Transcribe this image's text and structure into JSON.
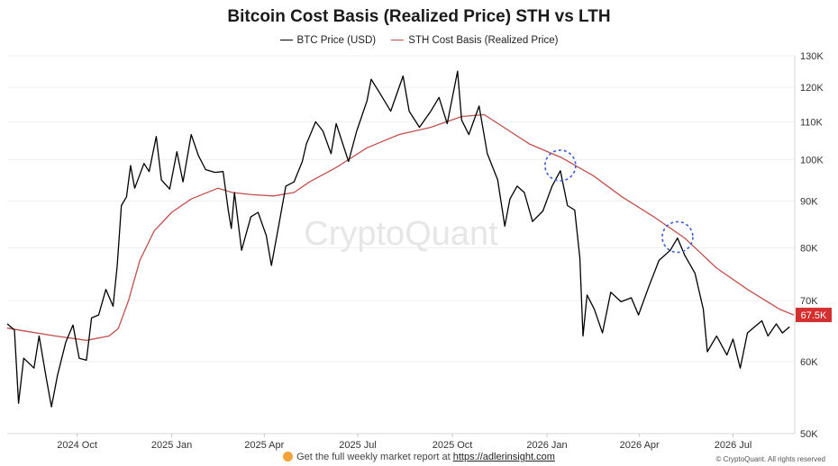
{
  "watermark": "CryptoQuant",
  "footer": {
    "text": "Get the full weekly market report at",
    "link": "https://adlerinsight.com"
  },
  "copyright": "© CryptoQuant. All rights reserved",
  "chart_data": {
    "type": "line",
    "title": "Bitcoin Cost Basis (Realized Price) STH vs LTH",
    "y_scale": "log",
    "ylim": [
      50000,
      130000
    ],
    "y_ticks": [
      {
        "value": 50000,
        "label": "50K"
      },
      {
        "value": 60000,
        "label": "60K"
      },
      {
        "value": 70000,
        "label": "70K"
      },
      {
        "value": 80000,
        "label": "80K"
      },
      {
        "value": 90000,
        "label": "90K"
      },
      {
        "value": 100000,
        "label": "100K"
      },
      {
        "value": 110000,
        "label": "110K"
      },
      {
        "value": 120000,
        "label": "120K"
      },
      {
        "value": 130000,
        "label": "130K"
      }
    ],
    "xlim": [
      "2024-07-25",
      "2026-08-30"
    ],
    "x_ticks": [
      {
        "date": "2024-10-01",
        "label": "2024 Oct"
      },
      {
        "date": "2025-01-01",
        "label": "2025 Jan"
      },
      {
        "date": "2025-04-01",
        "label": "2025 Apr"
      },
      {
        "date": "2025-07-01",
        "label": "2025 Jul"
      },
      {
        "date": "2025-10-01",
        "label": "2025 Oct"
      },
      {
        "date": "2026-01-01",
        "label": "2026 Jan"
      },
      {
        "date": "2026-04-01",
        "label": "2026 Apr"
      },
      {
        "date": "2026-07-01",
        "label": "2026 Jul"
      }
    ],
    "grid": "horizontal",
    "legend_position": "top-center",
    "last_value_label": "67.5K",
    "series": [
      {
        "name": "BTC Price (USD)",
        "color": "#000000",
        "points": [
          [
            "2024-07-25",
            66000
          ],
          [
            "2024-08-01",
            65000
          ],
          [
            "2024-08-05",
            54000
          ],
          [
            "2024-08-10",
            60500
          ],
          [
            "2024-08-20",
            59000
          ],
          [
            "2024-08-25",
            64000
          ],
          [
            "2024-09-01",
            57500
          ],
          [
            "2024-09-06",
            53500
          ],
          [
            "2024-09-12",
            58000
          ],
          [
            "2024-09-20",
            63000
          ],
          [
            "2024-09-27",
            65800
          ],
          [
            "2024-10-03",
            60500
          ],
          [
            "2024-10-10",
            60200
          ],
          [
            "2024-10-15",
            67000
          ],
          [
            "2024-10-22",
            67500
          ],
          [
            "2024-10-29",
            72000
          ],
          [
            "2024-11-05",
            69000
          ],
          [
            "2024-11-09",
            76500
          ],
          [
            "2024-11-13",
            89000
          ],
          [
            "2024-11-18",
            91000
          ],
          [
            "2024-11-22",
            98500
          ],
          [
            "2024-11-26",
            93000
          ],
          [
            "2024-12-05",
            99000
          ],
          [
            "2024-12-10",
            97000
          ],
          [
            "2024-12-17",
            106000
          ],
          [
            "2024-12-22",
            95000
          ],
          [
            "2024-12-30",
            92800
          ],
          [
            "2025-01-06",
            102000
          ],
          [
            "2025-01-12",
            94500
          ],
          [
            "2025-01-20",
            106500
          ],
          [
            "2025-01-27",
            101000
          ],
          [
            "2025-02-03",
            97500
          ],
          [
            "2025-02-12",
            96800
          ],
          [
            "2025-02-20",
            97000
          ],
          [
            "2025-02-25",
            88000
          ],
          [
            "2025-02-28",
            84000
          ],
          [
            "2025-03-03",
            92000
          ],
          [
            "2025-03-10",
            79500
          ],
          [
            "2025-03-19",
            86500
          ],
          [
            "2025-03-26",
            87500
          ],
          [
            "2025-04-03",
            82500
          ],
          [
            "2025-04-08",
            76500
          ],
          [
            "2025-04-15",
            84500
          ],
          [
            "2025-04-22",
            93500
          ],
          [
            "2025-04-30",
            94500
          ],
          [
            "2025-05-08",
            99500
          ],
          [
            "2025-05-12",
            104000
          ],
          [
            "2025-05-21",
            110000
          ],
          [
            "2025-05-28",
            107500
          ],
          [
            "2025-06-05",
            101500
          ],
          [
            "2025-06-10",
            109500
          ],
          [
            "2025-06-22",
            99500
          ],
          [
            "2025-06-30",
            107500
          ],
          [
            "2025-07-10",
            116000
          ],
          [
            "2025-07-14",
            122500
          ],
          [
            "2025-07-22",
            118500
          ],
          [
            "2025-08-02",
            113000
          ],
          [
            "2025-08-14",
            123500
          ],
          [
            "2025-08-20",
            113000
          ],
          [
            "2025-08-30",
            108500
          ],
          [
            "2025-09-10",
            113000
          ],
          [
            "2025-09-18",
            117000
          ],
          [
            "2025-09-26",
            109500
          ],
          [
            "2025-10-06",
            125000
          ],
          [
            "2025-10-10",
            110500
          ],
          [
            "2025-10-17",
            106500
          ],
          [
            "2025-10-27",
            114500
          ],
          [
            "2025-11-04",
            101500
          ],
          [
            "2025-11-14",
            95000
          ],
          [
            "2025-11-21",
            84500
          ],
          [
            "2025-11-26",
            90500
          ],
          [
            "2025-12-03",
            93500
          ],
          [
            "2025-12-10",
            92000
          ],
          [
            "2025-12-18",
            85500
          ],
          [
            "2025-12-28",
            87800
          ],
          [
            "2026-01-06",
            93500
          ],
          [
            "2026-01-14",
            97200
          ],
          [
            "2026-01-21",
            89000
          ],
          [
            "2026-01-28",
            88000
          ],
          [
            "2026-02-02",
            78000
          ],
          [
            "2026-02-05",
            64000
          ],
          [
            "2026-02-09",
            71000
          ],
          [
            "2026-02-16",
            68500
          ],
          [
            "2026-02-24",
            64500
          ],
          [
            "2026-03-04",
            71500
          ],
          [
            "2026-03-14",
            69800
          ],
          [
            "2026-03-24",
            70500
          ],
          [
            "2026-03-31",
            67500
          ],
          [
            "2026-04-10",
            72500
          ],
          [
            "2026-04-20",
            77500
          ],
          [
            "2026-05-01",
            79500
          ],
          [
            "2026-05-08",
            82000
          ],
          [
            "2026-05-15",
            78500
          ],
          [
            "2026-05-25",
            75000
          ],
          [
            "2026-06-02",
            68500
          ],
          [
            "2026-06-06",
            61500
          ],
          [
            "2026-06-15",
            64000
          ],
          [
            "2026-06-25",
            61000
          ],
          [
            "2026-07-01",
            63500
          ],
          [
            "2026-07-08",
            59000
          ],
          [
            "2026-07-15",
            64500
          ],
          [
            "2026-07-22",
            65500
          ],
          [
            "2026-07-29",
            66500
          ],
          [
            "2026-08-04",
            64000
          ],
          [
            "2026-08-12",
            66000
          ],
          [
            "2026-08-18",
            64500
          ],
          [
            "2026-08-25",
            65500
          ]
        ]
      },
      {
        "name": "STH Cost Basis (Realized Price)",
        "color": "#c0504d",
        "points": [
          [
            "2024-07-25",
            65300
          ],
          [
            "2024-08-15",
            64700
          ],
          [
            "2024-09-10",
            64000
          ],
          [
            "2024-10-10",
            63300
          ],
          [
            "2024-11-01",
            64000
          ],
          [
            "2024-11-10",
            65200
          ],
          [
            "2024-11-20",
            70000
          ],
          [
            "2024-12-01",
            77500
          ],
          [
            "2024-12-15",
            83500
          ],
          [
            "2025-01-01",
            87500
          ],
          [
            "2025-01-20",
            90500
          ],
          [
            "2025-02-15",
            93000
          ],
          [
            "2025-03-01",
            92000
          ],
          [
            "2025-03-20",
            91500
          ],
          [
            "2025-04-10",
            91200
          ],
          [
            "2025-04-30",
            92000
          ],
          [
            "2025-05-15",
            94500
          ],
          [
            "2025-06-10",
            98000
          ],
          [
            "2025-07-10",
            103000
          ],
          [
            "2025-08-10",
            106500
          ],
          [
            "2025-09-10",
            108500
          ],
          [
            "2025-10-10",
            111500
          ],
          [
            "2025-11-01",
            112000
          ],
          [
            "2025-11-20",
            108500
          ],
          [
            "2025-12-15",
            104000
          ],
          [
            "2026-01-15",
            100500
          ],
          [
            "2026-02-15",
            96000
          ],
          [
            "2026-03-15",
            91000
          ],
          [
            "2026-04-15",
            86500
          ],
          [
            "2026-05-15",
            82000
          ],
          [
            "2026-06-15",
            76000
          ],
          [
            "2026-07-15",
            72000
          ],
          [
            "2026-08-15",
            68500
          ],
          [
            "2026-08-29",
            67500
          ]
        ]
      }
    ],
    "annotations": [
      {
        "type": "dashed-circle",
        "color": "#3b5bdb",
        "date": "2026-01-14",
        "value": 98500
      },
      {
        "type": "dashed-circle",
        "color": "#3b5bdb",
        "date": "2026-05-08",
        "value": 82200
      }
    ]
  }
}
